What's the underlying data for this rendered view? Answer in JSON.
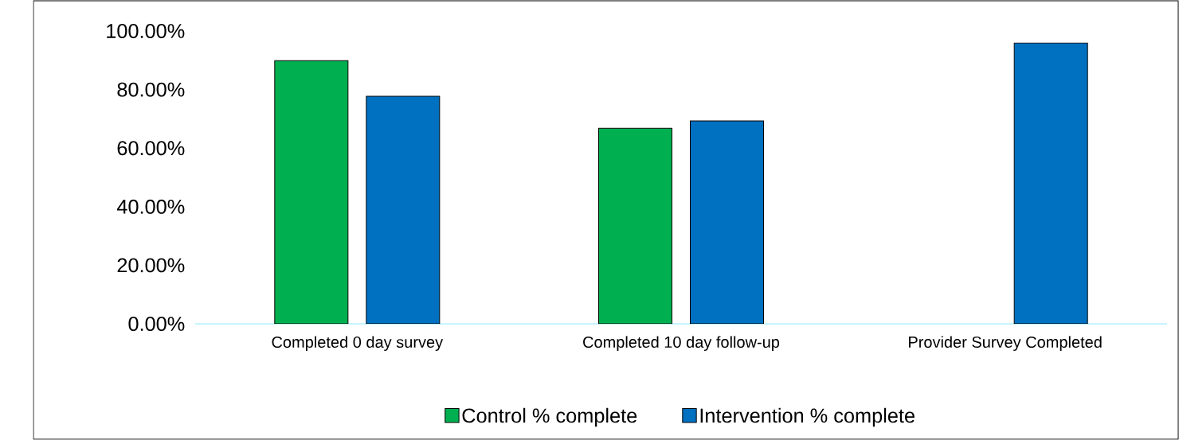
{
  "chart_data": {
    "type": "bar",
    "categories": [
      "Completed 0 day survey",
      "Completed 10 day follow-up",
      "Provider Survey Completed"
    ],
    "series": [
      {
        "name": "Control % complete",
        "color": "#00b050",
        "values": [
          89.9,
          66.8,
          null
        ]
      },
      {
        "name": "Intervention % complete",
        "color": "#0070c0",
        "values": [
          77.7,
          69.3,
          95.9
        ]
      }
    ],
    "ylim": [
      0,
      100
    ],
    "yticks": [
      {
        "value": 0,
        "label": "0.00%"
      },
      {
        "value": 20,
        "label": "20.00%"
      },
      {
        "value": 40,
        "label": "40.00%"
      },
      {
        "value": 60,
        "label": "60.00%"
      },
      {
        "value": 80,
        "label": "80.00%"
      },
      {
        "value": 100,
        "label": "100.00%"
      }
    ],
    "legend": "bottom"
  }
}
